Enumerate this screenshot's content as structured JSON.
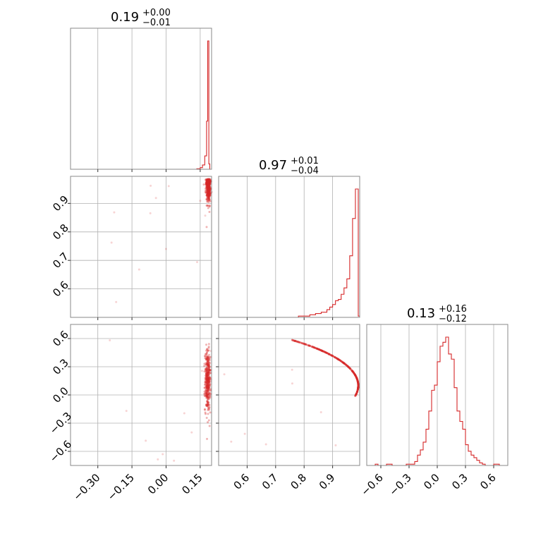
{
  "chart_data": {
    "type": "corner",
    "color": "#d62728",
    "grid": true,
    "parameters": [
      {
        "range": [
          -0.42,
          0.2
        ],
        "ticks": [
          -0.3,
          -0.15,
          0.0,
          0.15
        ],
        "tick_labels": [
          "−0.30",
          "−0.15",
          "0.00",
          "0.15"
        ]
      },
      {
        "range": [
          0.5,
          0.995
        ],
        "ticks": [
          0.6,
          0.7,
          0.8,
          0.9
        ],
        "tick_labels": [
          "0.6",
          "0.7",
          "0.8",
          "0.9"
        ]
      },
      {
        "range": [
          -0.75,
          0.75
        ],
        "ticks": [
          -0.6,
          -0.3,
          0.0,
          0.3,
          0.6
        ],
        "tick_labels": [
          "−0.6",
          "−0.3",
          "0.0",
          "0.3",
          "0.6"
        ]
      }
    ],
    "titles": [
      {
        "value": "0.19",
        "upper": "+0.00",
        "lower": "−0.01"
      },
      {
        "value": "0.97",
        "upper": "+0.01",
        "lower": "−0.04"
      },
      {
        "value": "0.13",
        "upper": "+0.16",
        "lower": "−0.12"
      }
    ],
    "histograms": [
      {
        "bin_edges": [
          -0.42,
          0.135,
          0.15,
          0.16,
          0.17,
          0.178,
          0.183,
          0.188,
          0.192,
          0.198
        ],
        "counts": [
          0,
          1,
          3,
          8,
          25,
          90,
          240,
          10,
          0
        ]
      },
      {
        "bin_edges": [
          0.5,
          0.78,
          0.8,
          0.82,
          0.84,
          0.86,
          0.88,
          0.89,
          0.9,
          0.91,
          0.92,
          0.93,
          0.94,
          0.95,
          0.96,
          0.97,
          0.98,
          0.99,
          0.995
        ],
        "counts": [
          0,
          1,
          1,
          2,
          3,
          4,
          6,
          8,
          10,
          13,
          14,
          18,
          23,
          30,
          48,
          77,
          100,
          1
        ]
      },
      {
        "bin_edges": [
          -0.75,
          -0.72,
          -0.69,
          -0.66,
          -0.63,
          -0.6,
          -0.57,
          -0.54,
          -0.51,
          -0.48,
          -0.45,
          -0.42,
          -0.39,
          -0.36,
          -0.33,
          -0.3,
          -0.27,
          -0.24,
          -0.21,
          -0.18,
          -0.15,
          -0.12,
          -0.09,
          -0.06,
          -0.03,
          0.0,
          0.03,
          0.06,
          0.09,
          0.12,
          0.15,
          0.18,
          0.21,
          0.24,
          0.27,
          0.3,
          0.33,
          0.36,
          0.39,
          0.42,
          0.45,
          0.48,
          0.51,
          0.54,
          0.57,
          0.6,
          0.63,
          0.66,
          0.69,
          0.72,
          0.75
        ],
        "counts": [
          0,
          0,
          0,
          1,
          0,
          0,
          0,
          1,
          1,
          0,
          0,
          0,
          0,
          0,
          1,
          1,
          1,
          3,
          8,
          12,
          18,
          28,
          42,
          58,
          62,
          80,
          92,
          95,
          99,
          86,
          82,
          60,
          42,
          34,
          28,
          16,
          11,
          8,
          6,
          4,
          2,
          1,
          0,
          0,
          0,
          1,
          1,
          0,
          0,
          0
        ]
      }
    ]
  }
}
